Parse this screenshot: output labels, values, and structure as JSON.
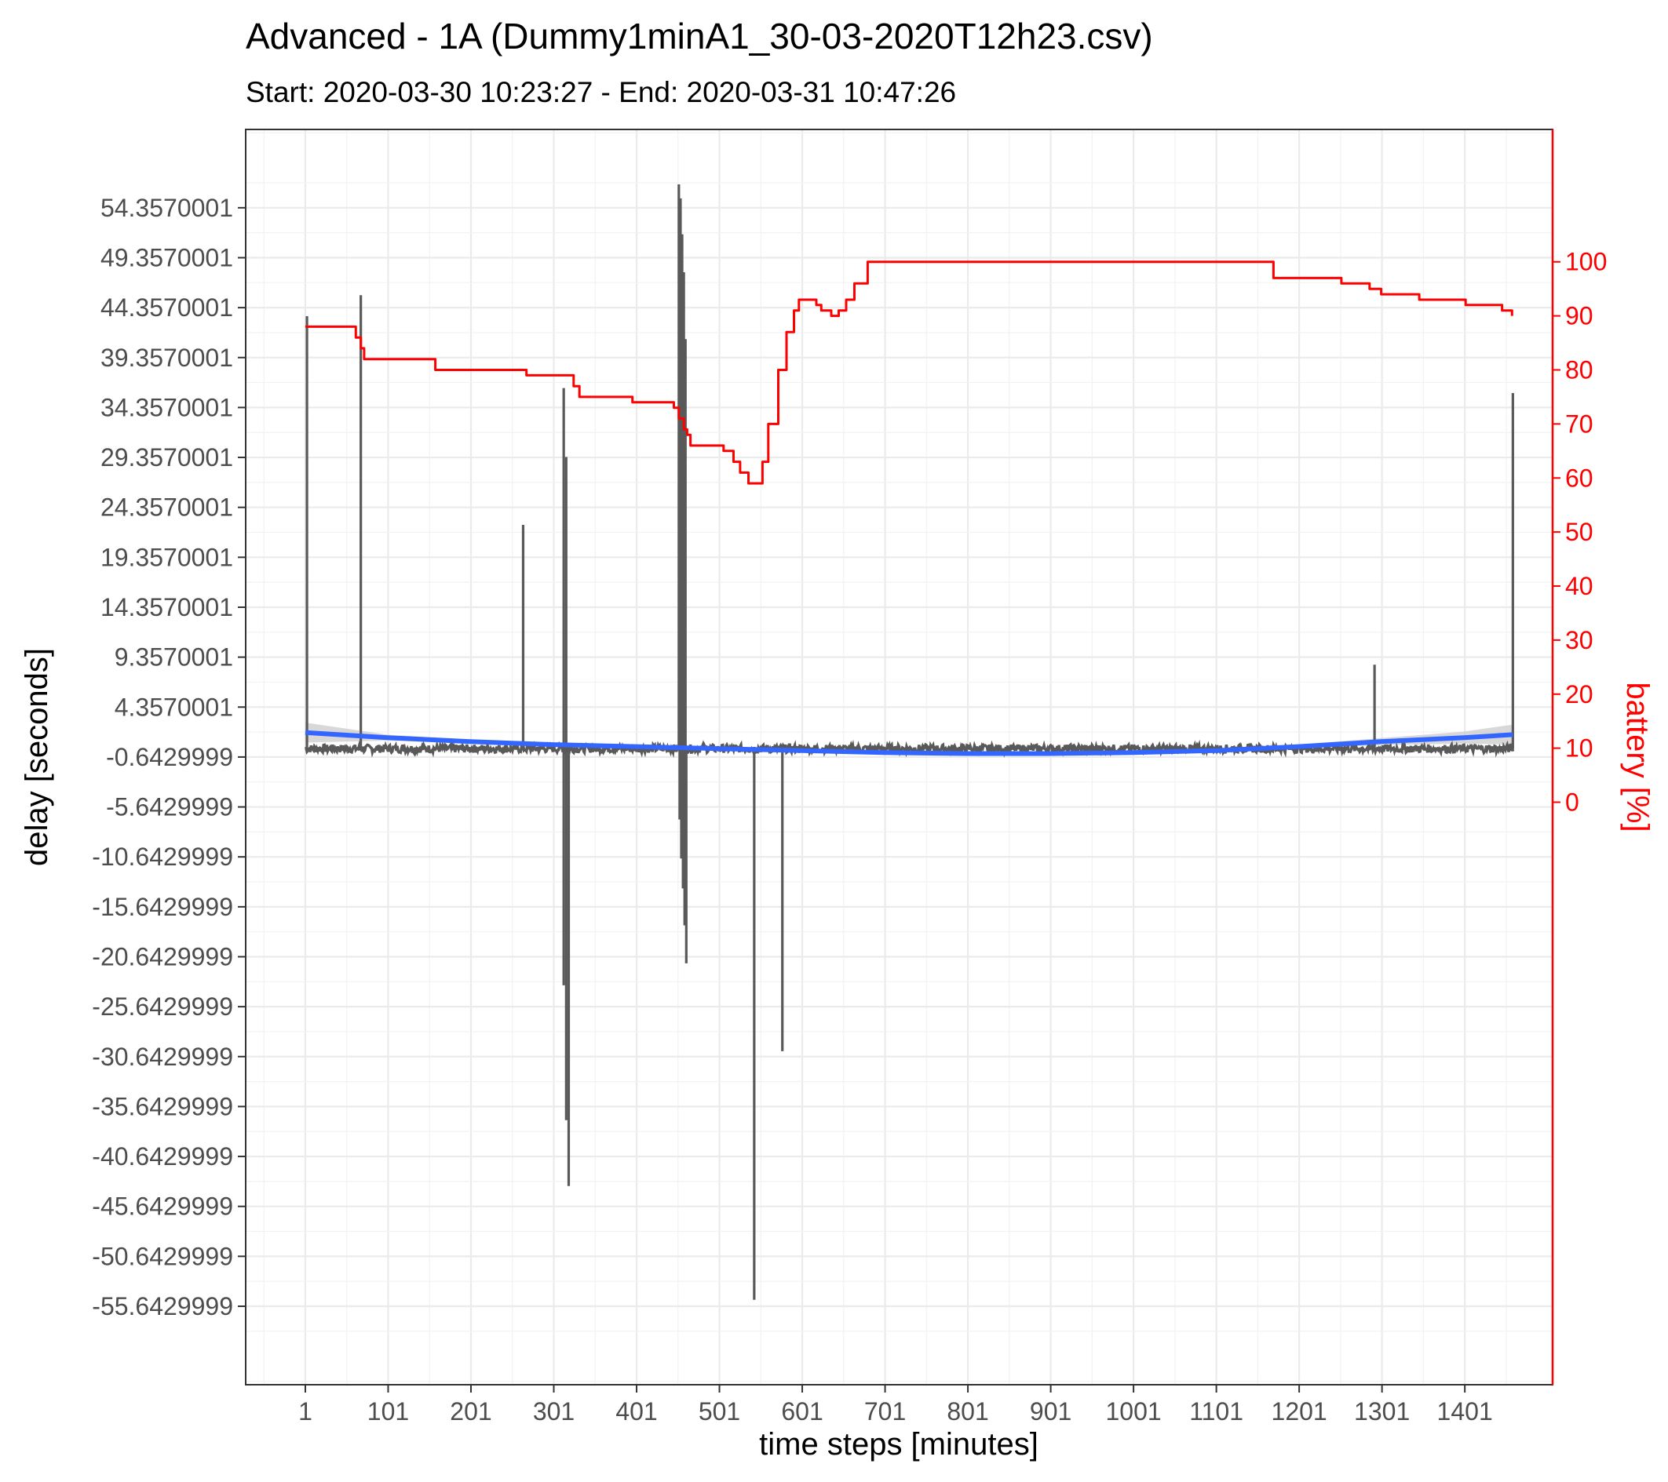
{
  "chart_data": {
    "type": "line",
    "title": "Advanced - 1A (Dummy1minA1_30-03-2020T12h23.csv)",
    "subtitle": "Start: 2020-03-30 10:23:27 - End: 2020-03-31 10:47:26",
    "xlabel": "time steps [minutes]",
    "ylabel": "delay [seconds]",
    "y2label": "battery [%]",
    "xlim": [
      -71,
      1507
    ],
    "ylim": [
      -63.5,
      62.2
    ],
    "y2lim": [
      -107.8,
      124.5
    ],
    "x_ticks": [
      "1",
      "101",
      "201",
      "301",
      "401",
      "501",
      "601",
      "701",
      "801",
      "901",
      "1001",
      "1101",
      "1201",
      "1301",
      "1401"
    ],
    "y_ticks": [
      "54.3570001",
      "49.3570001",
      "44.3570001",
      "39.3570001",
      "34.3570001",
      "29.3570001",
      "24.3570001",
      "19.3570001",
      "14.3570001",
      "9.3570001",
      "4.3570001",
      "-0.6429999",
      "-5.6429999",
      "-10.6429999",
      "-15.6429999",
      "-20.6429999",
      "-25.6429999",
      "-30.6429999",
      "-35.6429999",
      "-40.6429999",
      "-45.6429999",
      "-50.6429999",
      "-55.6429999"
    ],
    "y2_ticks": [
      "100",
      "90",
      "80",
      "70",
      "60",
      "50",
      "40",
      "30",
      "20",
      "10",
      "0"
    ],
    "grid": true,
    "colors": {
      "delay": "#595959",
      "smooth": "#3366ff",
      "band": "#c8c8c8",
      "battery": "#ff0000"
    },
    "series": [
      {
        "axis": "left",
        "style": "delay",
        "baseline": [
          -0.2,
          0.6
        ],
        "spikes": [
          {
            "x": 3,
            "y": 43.5
          },
          {
            "x": 68,
            "y": 45.6
          },
          {
            "x": 264,
            "y": 22.6
          },
          {
            "x": 313,
            "y": 36.3
          },
          {
            "x": 313,
            "y": -23.5
          },
          {
            "x": 316,
            "y": 29.4
          },
          {
            "x": 316,
            "y": -37.0
          },
          {
            "x": 319,
            "y": -43.6
          },
          {
            "x": 452,
            "y": 56.7
          },
          {
            "x": 453,
            "y": -6.9
          },
          {
            "x": 454,
            "y": 55.3
          },
          {
            "x": 455,
            "y": -10.8
          },
          {
            "x": 456,
            "y": 51.7
          },
          {
            "x": 457,
            "y": -13.8
          },
          {
            "x": 458,
            "y": 47.9
          },
          {
            "x": 459,
            "y": -17.5
          },
          {
            "x": 460,
            "y": 41.2
          },
          {
            "x": 461,
            "y": -21.3
          },
          {
            "x": 543,
            "y": -55.0
          },
          {
            "x": 577,
            "y": -30.1
          },
          {
            "x": 1292,
            "y": 8.6
          },
          {
            "x": 1459,
            "y": 35.8
          }
        ]
      },
      {
        "axis": "left",
        "style": "smooth",
        "x": [
          1,
          100,
          200,
          300,
          400,
          500,
          600,
          700,
          800,
          900,
          1000,
          1100,
          1200,
          1300,
          1400,
          1459
        ],
        "y": [
          1.8,
          1.3,
          0.9,
          0.6,
          0.4,
          0.2,
          0.0,
          -0.2,
          -0.3,
          -0.3,
          -0.2,
          0.0,
          0.4,
          0.9,
          1.3,
          1.6
        ],
        "band": [
          1.0,
          0.3,
          0.2,
          0.15,
          0.12,
          0.1,
          0.1,
          0.1,
          0.1,
          0.1,
          0.1,
          0.12,
          0.2,
          0.35,
          0.6,
          1.0
        ]
      },
      {
        "axis": "right",
        "style": "battery",
        "x": [
          1,
          55,
          62,
          68,
          72,
          150,
          158,
          262,
          268,
          318,
          325,
          332,
          386,
          396,
          446,
          452,
          458,
          462,
          466,
          478,
          506,
          518,
          526,
          536,
          548,
          553,
          560,
          572,
          582,
          591,
          597,
          618,
          624,
          636,
          645,
          654,
          664,
          680,
          1160,
          1170,
          1230,
          1252,
          1286,
          1300,
          1346,
          1392,
          1402,
          1446,
          1458
        ],
        "y": [
          88,
          88,
          86,
          84,
          82,
          82,
          80,
          80,
          79,
          79,
          77,
          75,
          75,
          74,
          73,
          71,
          69,
          68,
          66,
          66,
          65,
          63,
          61,
          59,
          59,
          63,
          70,
          80,
          87,
          91,
          93,
          92,
          91,
          90,
          91,
          93,
          96,
          100,
          100,
          97,
          97,
          96,
          95,
          94,
          93,
          93,
          92,
          91,
          90
        ]
      }
    ]
  }
}
